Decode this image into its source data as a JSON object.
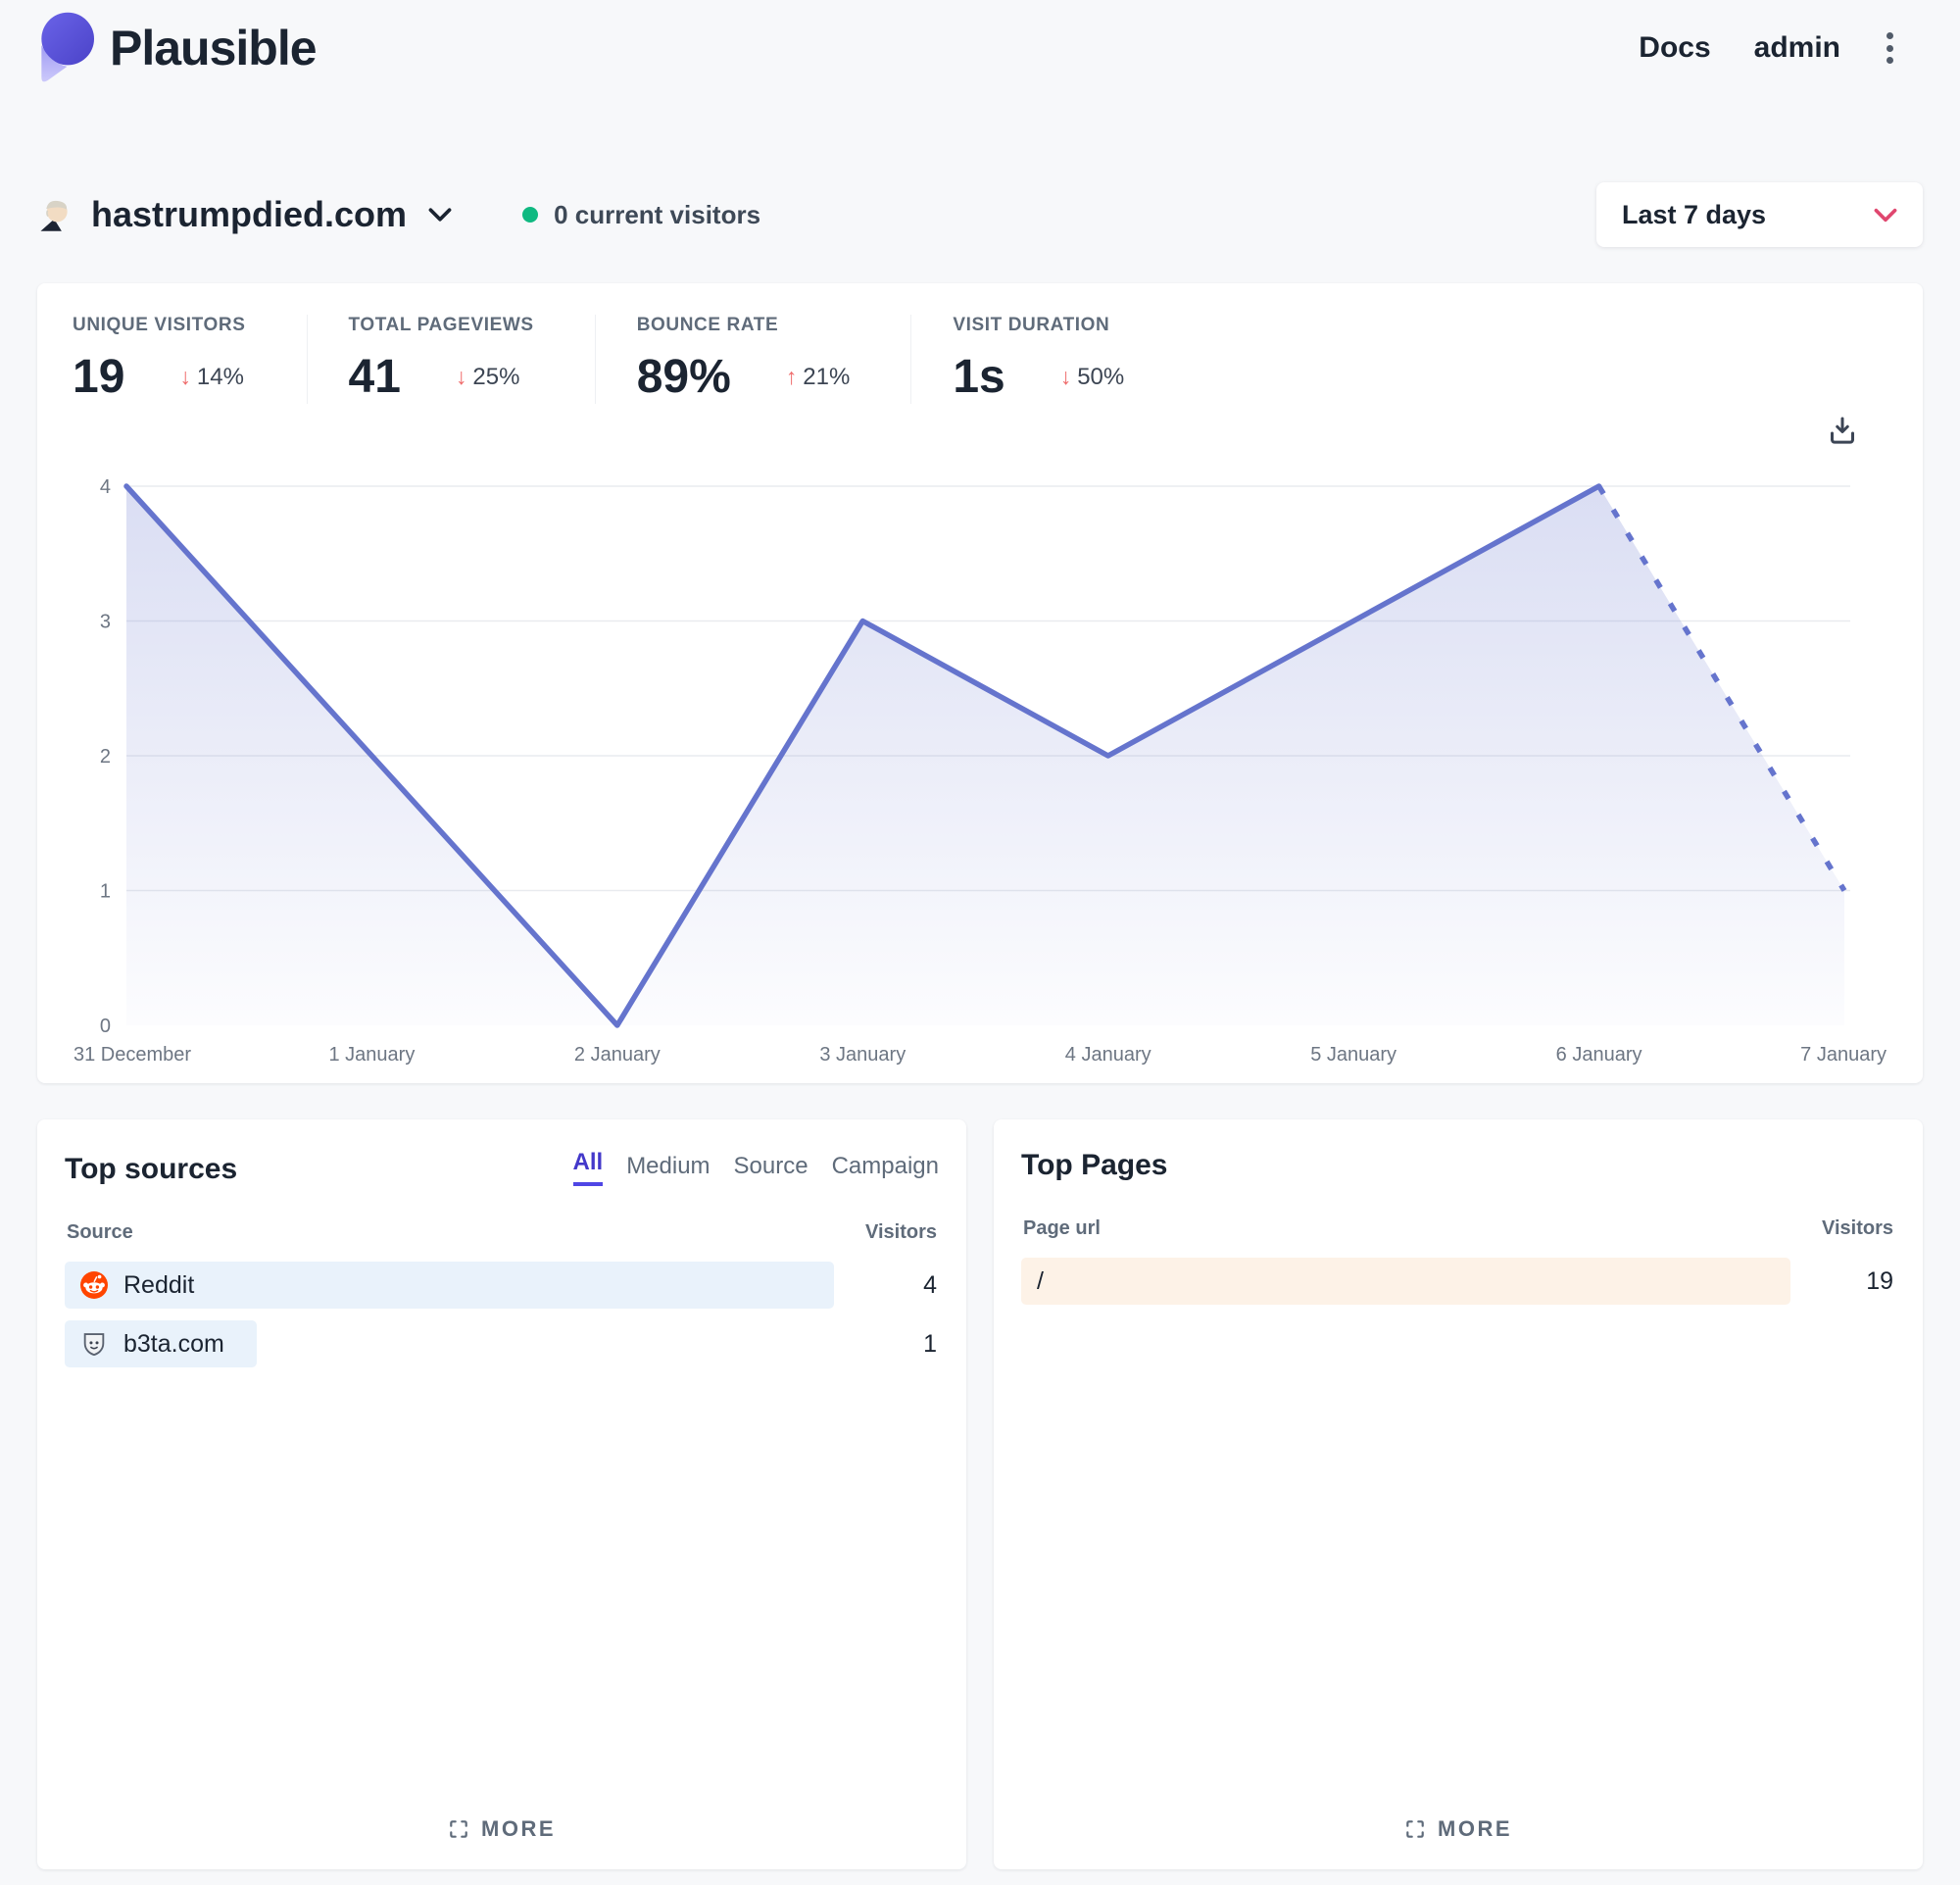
{
  "header": {
    "brand": "Plausible",
    "docs_label": "Docs",
    "user_label": "admin"
  },
  "site": {
    "domain": "hastrumpdied.com",
    "current_visitors": "0 current visitors"
  },
  "date_picker": {
    "selected": "Last 7 days"
  },
  "stats": [
    {
      "label": "UNIQUE VISITORS",
      "value": "19",
      "arrow": "↓",
      "change": "14%"
    },
    {
      "label": "TOTAL PAGEVIEWS",
      "value": "41",
      "arrow": "↓",
      "change": "25%"
    },
    {
      "label": "BOUNCE RATE",
      "value": "89%",
      "arrow": "↑",
      "change": "21%"
    },
    {
      "label": "VISIT DURATION",
      "value": "1s",
      "arrow": "↓",
      "change": "50%"
    }
  ],
  "chart_data": {
    "type": "line",
    "x": [
      "31 December",
      "1 January",
      "2 January",
      "3 January",
      "4 January",
      "5 January",
      "6 January",
      "7 January"
    ],
    "series": [
      {
        "name": "Visitors",
        "values": [
          4,
          2,
          0,
          3,
          2,
          3,
          4,
          1
        ]
      }
    ],
    "dashed_from_index": 6,
    "yticks": [
      0,
      1,
      2,
      3,
      4
    ],
    "ylim": [
      0,
      4
    ],
    "xlabel": "",
    "ylabel": "",
    "grid": true,
    "legend": "none",
    "line_color": "#6574cd"
  },
  "top_sources": {
    "title": "Top sources",
    "tabs": [
      {
        "label": "All",
        "active": true
      },
      {
        "label": "Medium",
        "active": false
      },
      {
        "label": "Source",
        "active": false
      },
      {
        "label": "Campaign",
        "active": false
      }
    ],
    "columns": {
      "name": "Source",
      "value": "Visitors"
    },
    "rows": [
      {
        "label": "Reddit",
        "value": 4,
        "icon": "reddit-icon"
      },
      {
        "label": "b3ta.com",
        "value": 1,
        "icon": "b3ta-favicon"
      }
    ],
    "bar_color": "#e9f2fb",
    "more_label": "MORE"
  },
  "top_pages": {
    "title": "Top Pages",
    "columns": {
      "name": "Page url",
      "value": "Visitors"
    },
    "rows": [
      {
        "label": "/",
        "value": 19
      }
    ],
    "bar_color": "#fdf2e7",
    "more_label": "MORE"
  },
  "colors": {
    "accent_line": "#6574cd",
    "negative_red": "#ef6b6b",
    "tab_active": "#4f46e5",
    "green_dot": "#10b981"
  }
}
